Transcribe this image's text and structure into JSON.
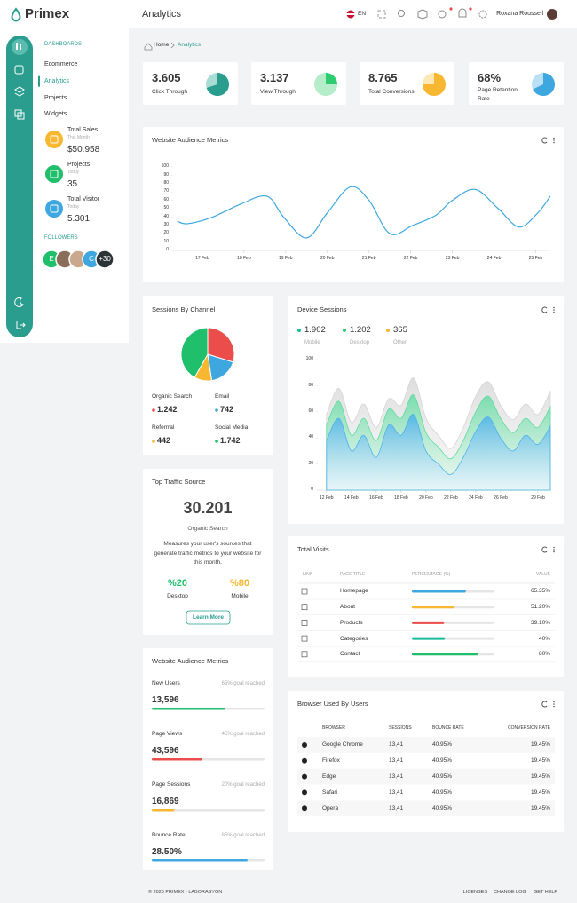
{
  "header": {
    "brand": "Primex",
    "page": "Analytics",
    "lang": "EN",
    "user": "Roxana Rousseil"
  },
  "sidebar": {
    "section": "DASHBOARDS",
    "menu": [
      "Ecommerce",
      "Analytics",
      "Projects",
      "Widgets"
    ],
    "active": 1,
    "stats": [
      {
        "title": "Total Sales",
        "period": "This Month",
        "value": "$50.958",
        "color": "#f7b731"
      },
      {
        "title": "Projects",
        "period": "Totaly",
        "value": "35",
        "color": "#20bf6b"
      },
      {
        "title": "Total Visitor",
        "period": "Today",
        "value": "5.301",
        "color": "#3ea7e0"
      }
    ],
    "followers_title": "FOLLOWERS",
    "followers": [
      "E",
      "C"
    ],
    "followers_more": "+30"
  },
  "breadcrumb": [
    "Home",
    "Analytics"
  ],
  "cards": [
    {
      "value": "3.605",
      "label": "Click Through",
      "pie": 70,
      "color": "#2a9d8f",
      "light": "#a8dcd4"
    },
    {
      "value": "3.137",
      "label": "View Through",
      "pie": 25,
      "color": "#2ecc71",
      "light": "#b5ecc9"
    },
    {
      "value": "8.765",
      "label": "Total Conversions",
      "pie": 75,
      "color": "#f7b731",
      "light": "#fde7b4"
    },
    {
      "value": "68%",
      "label": "Page Retention Rate",
      "pie": 68,
      "color": "#3ea7e0",
      "light": "#b9e0f5"
    }
  ],
  "audience": {
    "type": "line",
    "title": "Website Audience Metrics",
    "color": "#3ea7e0",
    "x": [
      16.4,
      16.65,
      17.25,
      17.9,
      18.55,
      18.95,
      19.5,
      20.0,
      20.55,
      21.0,
      21.5,
      22.05,
      22.6,
      23.0,
      23.55,
      24.1,
      24.6,
      25.05,
      25.35
    ],
    "values": [
      35,
      32,
      40,
      55,
      65,
      40,
      15,
      45,
      76,
      60,
      20,
      30,
      42,
      60,
      73,
      50,
      28,
      45,
      65
    ],
    "xlim": [
      16.3,
      25.35
    ],
    "ylim": [
      0,
      100
    ],
    "yticks": [
      0,
      10,
      20,
      30,
      40,
      50,
      60,
      70,
      80,
      90,
      100
    ],
    "xticks": [
      {
        "value": 17,
        "label": "17 Feb"
      },
      {
        "value": 18,
        "label": "18 Feb"
      },
      {
        "value": 19,
        "label": "19 Feb"
      },
      {
        "value": 20,
        "label": "20 Feb"
      },
      {
        "value": 21,
        "label": "21 Feb"
      },
      {
        "value": 22,
        "label": "22 Feb"
      },
      {
        "value": 23,
        "label": "23 Feb"
      },
      {
        "value": 24,
        "label": "24 Feb"
      },
      {
        "value": 25,
        "label": "25 Feb"
      }
    ],
    "grid": false
  },
  "channels": {
    "type": "pie",
    "title": "Sessions By Channel",
    "categories": [
      "Organic Search",
      "Email",
      "Referrral",
      "Social Media"
    ],
    "values": [
      1242,
      742,
      442,
      1742
    ],
    "value_labels": [
      "1.242",
      "742",
      "442",
      "1.742"
    ],
    "colors": [
      "#eb4d4b",
      "#3ea7e0",
      "#f7b731",
      "#20bf6b"
    ]
  },
  "device": {
    "type": "area",
    "title": "Device Sessions",
    "legend": [
      {
        "name": "Mobile",
        "value": 1902,
        "value_label": "1.902",
        "color": "#1abc9c"
      },
      {
        "name": "Desktop",
        "value": 1202,
        "value_label": "1.202",
        "color": "#2ecc71"
      },
      {
        "name": "Other",
        "value": 365,
        "value_label": "365",
        "color": "#f7b731"
      }
    ],
    "x": [
      12,
      13,
      14,
      15,
      16,
      17,
      18,
      19,
      20,
      21,
      22,
      23,
      24,
      25,
      26,
      27,
      28,
      29,
      30
    ],
    "series": [
      {
        "color": "#d5d5d5",
        "values": [
          58,
          78,
          52,
          66,
          48,
          70,
          65,
          86,
          55,
          42,
          32,
          48,
          72,
          83,
          65,
          54,
          66,
          58,
          76
        ]
      },
      {
        "color": "#5fdba0",
        "values": [
          50,
          68,
          42,
          55,
          38,
          62,
          55,
          73,
          44,
          33,
          24,
          38,
          60,
          72,
          55,
          44,
          55,
          48,
          64
        ]
      },
      {
        "color": "#4fb3e8",
        "values": [
          38,
          55,
          30,
          42,
          25,
          50,
          42,
          58,
          30,
          20,
          12,
          25,
          45,
          56,
          40,
          30,
          42,
          35,
          49
        ]
      }
    ],
    "xlim": [
      11.3,
      30
    ],
    "ylim": [
      0,
      100
    ],
    "yticks": [
      0,
      20,
      40,
      60,
      80,
      100
    ],
    "xticks": [
      {
        "value": 12,
        "label": "12 Feb"
      },
      {
        "value": 14,
        "label": "14 Feb"
      },
      {
        "value": 16,
        "label": "16 Feb"
      },
      {
        "value": 18,
        "label": "18 Feb"
      },
      {
        "value": 20,
        "label": "20 Feb"
      },
      {
        "value": 22,
        "label": "22 Feb"
      },
      {
        "value": 24,
        "label": "24 Feb"
      },
      {
        "value": 26,
        "label": "26 Feb"
      },
      {
        "value": 29,
        "label": "29 Feb"
      }
    ]
  },
  "traffic": {
    "title": "Top Traffic Source",
    "value": "30.201",
    "source": "Organic Search",
    "description": "Measures your user's sources that generate traffic metrics to your website for this month.",
    "desktop": "%20",
    "desktop_label": "Desktop",
    "mobile": "%80",
    "mobile_label": "Mobile",
    "button": "Learn More"
  },
  "goals": {
    "title": "Website Audience Metrics",
    "items": [
      {
        "label": "New Users",
        "goal": 65,
        "goal_label": "65% goal reached",
        "value": "13,596",
        "color": "#20bf6b"
      },
      {
        "label": "Page Views",
        "goal": 45,
        "goal_label": "45% goal reached",
        "value": "43,596",
        "color": "#eb4d4b"
      },
      {
        "label": "Page Sessions",
        "goal": 20,
        "goal_label": "20% goal reached",
        "value": "16,869",
        "color": "#f7b731"
      },
      {
        "label": "Bounce Rate",
        "goal": 85,
        "goal_label": "85% goal reached",
        "value": "28.50%",
        "color": "#3ea7e0"
      }
    ]
  },
  "visits": {
    "title": "Total Visits",
    "columns": [
      "LINK",
      "PAGE TITLE",
      "PERCENTAGE (%)",
      "VALUE"
    ],
    "pages": [
      "Homepage",
      "About",
      "Products",
      "Categories",
      "Contact"
    ],
    "values": [
      65.35,
      51.2,
      39.1,
      40,
      80
    ],
    "value_labels": [
      "65.35%",
      "51.20%",
      "39.10%",
      "40%",
      "80%"
    ],
    "colors": [
      "#3ea7e0",
      "#f7b731",
      "#eb4d4b",
      "#1abc9c",
      "#20bf6b"
    ]
  },
  "browsers": {
    "title": "Browser Used By Users",
    "columns": [
      "BROWSER",
      "SESSIONS",
      "BOUNCE RATE",
      "CONVERSION RATE"
    ],
    "rows": [
      [
        "Google Chrome",
        "13,41",
        "40.95%",
        "19.45%"
      ],
      [
        "Firefox",
        "13,41",
        "40.95%",
        "19.45%"
      ],
      [
        "Edge",
        "13,41",
        "40.95%",
        "19.45%"
      ],
      [
        "Safari",
        "13,41",
        "40.95%",
        "19.45%"
      ],
      [
        "Opera",
        "13,41",
        "40.95%",
        "19.45%"
      ]
    ]
  },
  "footer": {
    "copyright": "© 2020 PRIMEX - LABORASYON",
    "links": [
      "LICENSES",
      "CHANGE LOG",
      "GET HELP"
    ]
  }
}
